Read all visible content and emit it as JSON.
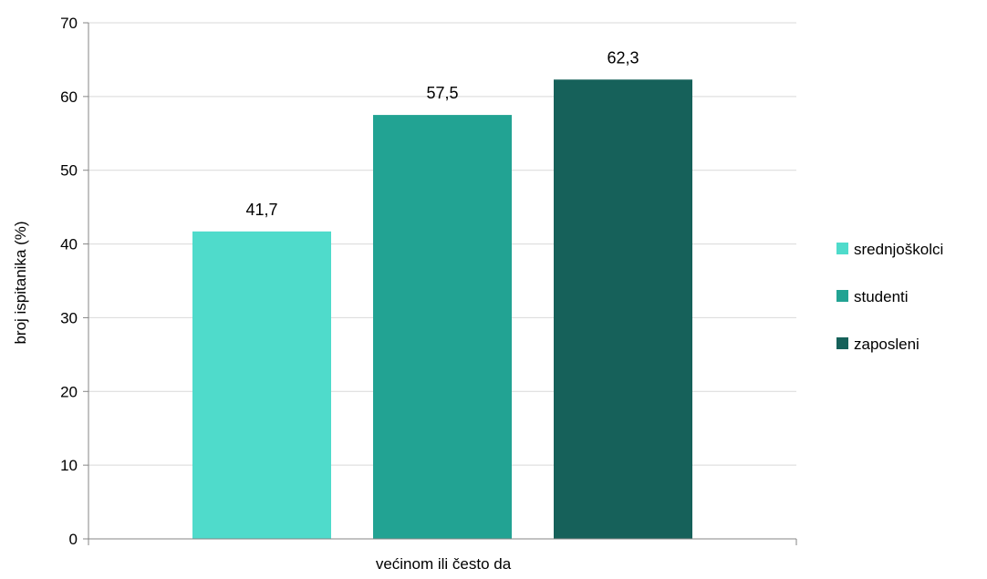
{
  "chart_data": {
    "type": "bar",
    "categories": [
      "većinom ili često da"
    ],
    "series": [
      {
        "name": "srednjoškolci",
        "values": [
          41.7
        ],
        "label": "41,7",
        "color": "#4fdbcb"
      },
      {
        "name": "studenti",
        "values": [
          57.5
        ],
        "label": "57,5",
        "color": "#22a393"
      },
      {
        "name": "zaposleni",
        "values": [
          62.3
        ],
        "label": "62,3",
        "color": "#16615a"
      }
    ],
    "ylabel": "broj ispitanika (%)",
    "ylim": [
      0,
      70
    ],
    "yticks": [
      0,
      10,
      20,
      30,
      40,
      50,
      60,
      70
    ],
    "grid": true,
    "legend": "right"
  }
}
